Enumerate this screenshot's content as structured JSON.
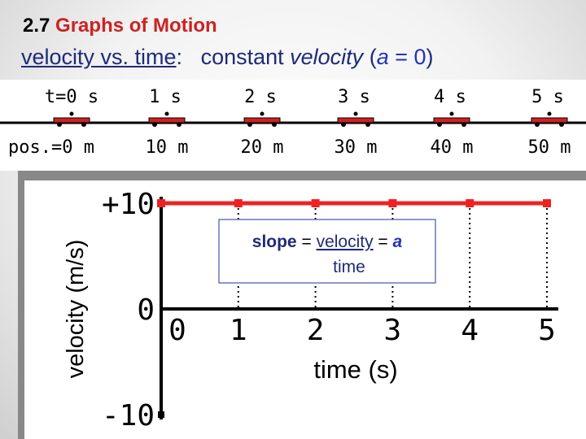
{
  "slide": {
    "section_number": "2.7",
    "section_title": "Graphs of Motion",
    "subtitle": {
      "part1": "velocity vs. time",
      "colon": ":",
      "part2": "constant ",
      "part3": "velocity",
      "part4": " (",
      "a": "a",
      "eq": " = 0",
      "close": ")"
    }
  },
  "motion_strip": {
    "times": [
      "t=0 s",
      "1 s",
      "2 s",
      "3 s",
      "4 s",
      "5 s"
    ],
    "positions": [
      "pos.=0 m",
      "10 m",
      "20 m",
      "30 m",
      "40 m",
      "50 m"
    ],
    "car_color": "#cc2222"
  },
  "chart_data": {
    "type": "line",
    "ylabel": "velocity (m/s)",
    "xlabel": "time (s)",
    "x": [
      0,
      1,
      2,
      3,
      4,
      5
    ],
    "series": [
      {
        "values": [
          10,
          10,
          10,
          10,
          10,
          10
        ],
        "color": "#ee2222"
      }
    ],
    "xlim": [
      0,
      5
    ],
    "ylim": [
      -10,
      10
    ],
    "y_tick_labels": [
      "+10",
      "0",
      "-10"
    ],
    "x_tick_labels": [
      "0",
      "1",
      "2",
      "3",
      "4",
      "5"
    ],
    "grid": false,
    "annotation": {
      "numerator_word1": "slope",
      "equals1": " = ",
      "numerator_word2": "velocity",
      "equals2": " = ",
      "a": "a",
      "denominator": "time"
    }
  }
}
